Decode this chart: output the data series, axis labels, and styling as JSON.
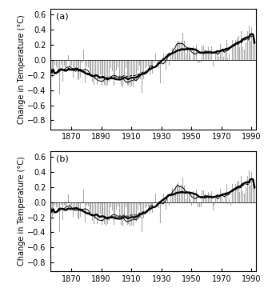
{
  "title_a": "(a)",
  "title_b": "(b)",
  "ylabel": "Change in Temperature (°C)",
  "xlim": [
    1856,
    1993
  ],
  "ylim": [
    -0.92,
    0.68
  ],
  "yticks": [
    -0.8,
    -0.6,
    -0.4,
    -0.2,
    0.0,
    0.2,
    0.4,
    0.6
  ],
  "xticks": [
    1870,
    1890,
    1910,
    1930,
    1950,
    1970,
    1990
  ],
  "figsize": [
    3.3,
    3.65
  ],
  "dpi": 100,
  "bar_color": "#aaaaaa",
  "bar_edge_color": "#888888",
  "line_color": "#000000",
  "bg_color": "#ffffff",
  "years": [
    1856,
    1857,
    1858,
    1859,
    1860,
    1861,
    1862,
    1863,
    1864,
    1865,
    1866,
    1867,
    1868,
    1869,
    1870,
    1871,
    1872,
    1873,
    1874,
    1875,
    1876,
    1877,
    1878,
    1879,
    1880,
    1881,
    1882,
    1883,
    1884,
    1885,
    1886,
    1887,
    1888,
    1889,
    1890,
    1891,
    1892,
    1893,
    1894,
    1895,
    1896,
    1897,
    1898,
    1899,
    1900,
    1901,
    1902,
    1903,
    1904,
    1905,
    1906,
    1907,
    1908,
    1909,
    1910,
    1911,
    1912,
    1913,
    1914,
    1915,
    1916,
    1917,
    1918,
    1919,
    1920,
    1921,
    1922,
    1923,
    1924,
    1925,
    1926,
    1927,
    1928,
    1929,
    1930,
    1931,
    1932,
    1933,
    1934,
    1935,
    1936,
    1937,
    1938,
    1939,
    1940,
    1941,
    1942,
    1943,
    1944,
    1945,
    1946,
    1947,
    1948,
    1949,
    1950,
    1951,
    1952,
    1953,
    1954,
    1955,
    1956,
    1957,
    1958,
    1959,
    1960,
    1961,
    1962,
    1963,
    1964,
    1965,
    1966,
    1967,
    1968,
    1969,
    1970,
    1971,
    1972,
    1973,
    1974,
    1975,
    1976,
    1977,
    1978,
    1979,
    1980,
    1981,
    1982,
    1983,
    1984,
    1985,
    1986,
    1987,
    1988,
    1989,
    1990,
    1991,
    1992
  ],
  "hadcrut_a": [
    -0.1,
    -0.22,
    -0.18,
    -0.05,
    -0.08,
    -0.16,
    -0.45,
    -0.05,
    -0.28,
    -0.06,
    -0.08,
    -0.06,
    0.06,
    -0.08,
    -0.06,
    -0.22,
    -0.12,
    -0.13,
    -0.24,
    -0.25,
    -0.22,
    -0.03,
    0.14,
    -0.3,
    -0.07,
    -0.08,
    -0.14,
    -0.18,
    -0.28,
    -0.32,
    -0.23,
    -0.32,
    -0.24,
    -0.18,
    -0.33,
    -0.23,
    -0.32,
    -0.34,
    -0.32,
    -0.28,
    -0.1,
    -0.14,
    -0.33,
    -0.22,
    -0.13,
    -0.08,
    -0.24,
    -0.33,
    -0.35,
    -0.22,
    -0.1,
    -0.33,
    -0.32,
    -0.35,
    -0.33,
    -0.35,
    -0.28,
    -0.28,
    -0.13,
    -0.06,
    -0.24,
    -0.43,
    -0.24,
    -0.1,
    -0.08,
    -0.07,
    -0.18,
    -0.09,
    -0.17,
    -0.02,
    0.09,
    -0.08,
    -0.1,
    -0.3,
    0.02,
    0.09,
    0.0,
    -0.12,
    0.07,
    -0.06,
    0.07,
    0.16,
    0.12,
    0.15,
    0.22,
    0.26,
    0.24,
    0.25,
    0.36,
    0.25,
    0.08,
    0.14,
    0.17,
    0.07,
    0.0,
    0.18,
    0.15,
    0.2,
    -0.03,
    -0.02,
    -0.02,
    0.19,
    0.19,
    0.14,
    0.1,
    0.17,
    0.14,
    0.18,
    -0.07,
    -0.0,
    0.08,
    0.14,
    0.04,
    0.21,
    0.15,
    0.04,
    0.11,
    0.27,
    0.02,
    0.08,
    0.0,
    0.27,
    0.17,
    0.27,
    0.3,
    0.32,
    0.17,
    0.38,
    0.18,
    0.14,
    0.23,
    0.38,
    0.46,
    0.25,
    0.44,
    0.35,
    0.23
  ],
  "hadcrut_b": [
    -0.06,
    -0.18,
    -0.14,
    -0.02,
    -0.05,
    -0.12,
    -0.38,
    -0.02,
    -0.22,
    -0.02,
    -0.04,
    -0.02,
    0.1,
    -0.04,
    -0.03,
    -0.18,
    -0.08,
    -0.09,
    -0.2,
    -0.21,
    -0.18,
    0.01,
    0.17,
    -0.26,
    -0.03,
    -0.04,
    -0.1,
    -0.14,
    -0.24,
    -0.28,
    -0.19,
    -0.28,
    -0.2,
    -0.14,
    -0.29,
    -0.19,
    -0.28,
    -0.3,
    -0.28,
    -0.24,
    -0.06,
    -0.1,
    -0.29,
    -0.18,
    -0.09,
    -0.04,
    -0.2,
    -0.29,
    -0.31,
    -0.18,
    -0.06,
    -0.29,
    -0.28,
    -0.31,
    -0.29,
    -0.31,
    -0.24,
    -0.25,
    -0.1,
    -0.02,
    -0.2,
    -0.38,
    -0.2,
    -0.07,
    -0.05,
    -0.04,
    -0.14,
    -0.06,
    -0.13,
    0.01,
    0.12,
    -0.05,
    -0.07,
    -0.27,
    0.05,
    0.12,
    0.03,
    -0.09,
    0.1,
    -0.03,
    0.1,
    0.19,
    0.15,
    0.18,
    0.24,
    0.26,
    0.22,
    0.23,
    0.33,
    0.22,
    0.05,
    0.11,
    0.14,
    0.04,
    -0.03,
    0.15,
    0.12,
    0.17,
    -0.06,
    -0.05,
    -0.05,
    0.16,
    0.16,
    0.11,
    0.07,
    0.14,
    0.11,
    0.15,
    -0.1,
    -0.03,
    0.05,
    0.11,
    0.01,
    0.18,
    0.12,
    0.01,
    0.08,
    0.24,
    -0.01,
    0.05,
    -0.03,
    0.24,
    0.14,
    0.24,
    0.27,
    0.28,
    0.14,
    0.35,
    0.15,
    0.11,
    0.2,
    0.35,
    0.42,
    0.22,
    0.4,
    0.31,
    0.2
  ]
}
